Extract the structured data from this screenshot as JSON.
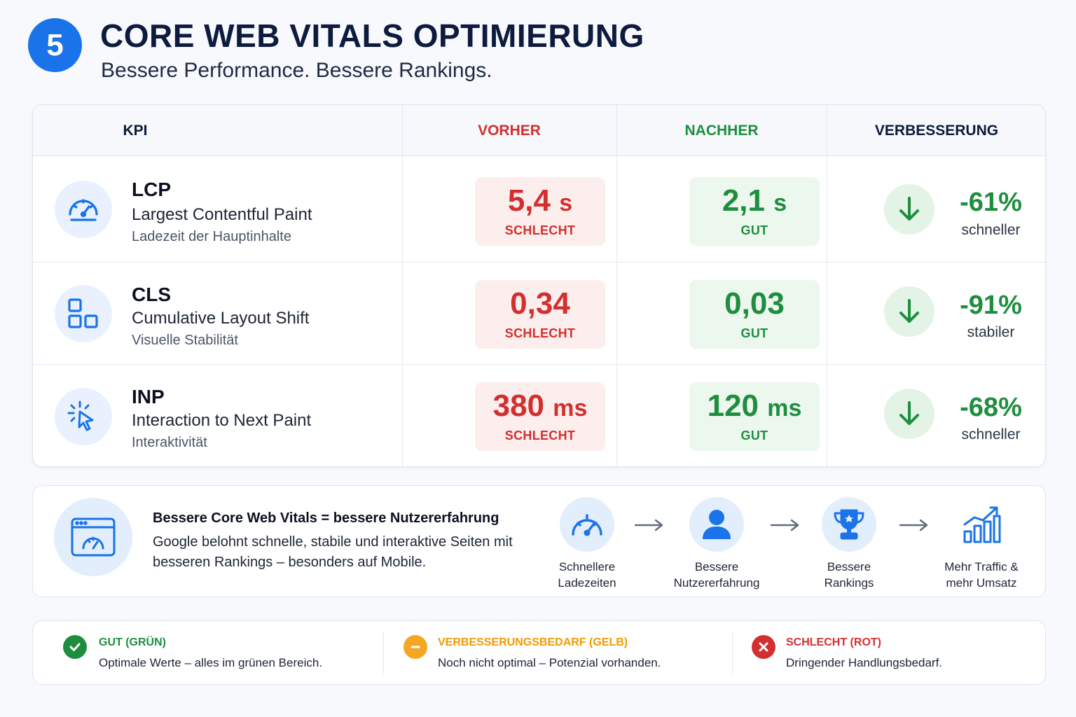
{
  "header": {
    "step_number": "5",
    "title": "CORE WEB VITALS OPTIMIERUNG",
    "subtitle": "Bessere Performance. Bessere Rankings."
  },
  "table": {
    "columns": [
      "KPI",
      "VORHER",
      "NACHHER",
      "VERBESSERUNG"
    ],
    "column_colors": [
      "#0b1b3a",
      "#d32f2f",
      "#1e8e3e",
      "#0b1b3a"
    ],
    "rows": [
      {
        "icon": "speedometer-icon",
        "abbr": "LCP",
        "name": "Largest Contentful Paint",
        "description": "Ladezeit der Hauptinhalte",
        "before_value": "5,4",
        "before_unit": "s",
        "before_status": "SCHLECHT",
        "after_value": "2,1",
        "after_unit": "s",
        "after_status": "GUT",
        "improvement": "-61%",
        "improvement_label": "schneller"
      },
      {
        "icon": "layout-blocks-icon",
        "abbr": "CLS",
        "name": "Cumulative Layout Shift",
        "description": "Visuelle Stabilität",
        "before_value": "0,34",
        "before_unit": "",
        "before_status": "SCHLECHT",
        "after_value": "0,03",
        "after_unit": "",
        "after_status": "GUT",
        "improvement": "-91%",
        "improvement_label": "stabiler"
      },
      {
        "icon": "cursor-click-icon",
        "abbr": "INP",
        "name": "Interaction to Next Paint",
        "description": "Interaktivität",
        "before_value": "380",
        "before_unit": "ms",
        "before_status": "SCHLECHT",
        "after_value": "120",
        "after_unit": "ms",
        "after_status": "GUT",
        "improvement": "-68%",
        "improvement_label": "schneller"
      }
    ]
  },
  "info": {
    "icon": "browser-speedometer-icon",
    "heading": "Bessere Core Web Vitals = bessere Nutzererfahrung",
    "body": "Google belohnt schnelle, stabile und interaktive Seiten mit besseren Rankings – besonders auf Mobile.",
    "flow": [
      {
        "icon": "speedometer-icon",
        "label_line1": "Schnellere",
        "label_line2": "Ladezeiten"
      },
      {
        "icon": "user-icon",
        "label_line1": "Bessere",
        "label_line2": "Nutzererfahrung"
      },
      {
        "icon": "trophy-icon",
        "label_line1": "Bessere",
        "label_line2": "Rankings"
      },
      {
        "icon": "growth-chart-icon",
        "label_line1": "Mehr Traffic &",
        "label_line2": "mehr Umsatz"
      }
    ]
  },
  "legend": [
    {
      "icon": "check-icon",
      "color": "#1e8e3e",
      "title": "GUT (GRÜN)",
      "text": "Optimale Werte – alles im grünen Bereich."
    },
    {
      "icon": "minus-icon",
      "color": "#f5a623",
      "title": "VERBESSERUNGSBEDARF (GELB)",
      "text": "Noch nicht optimal – Potenzial vorhanden."
    },
    {
      "icon": "cross-icon",
      "color": "#d32f2f",
      "title": "SCHLECHT (ROT)",
      "text": "Dringender Handlungsbedarf."
    }
  ],
  "colors": {
    "accent": "#1a73e8",
    "bad": "#d32f2f",
    "good": "#1e8e3e",
    "warning": "#f5a623"
  }
}
